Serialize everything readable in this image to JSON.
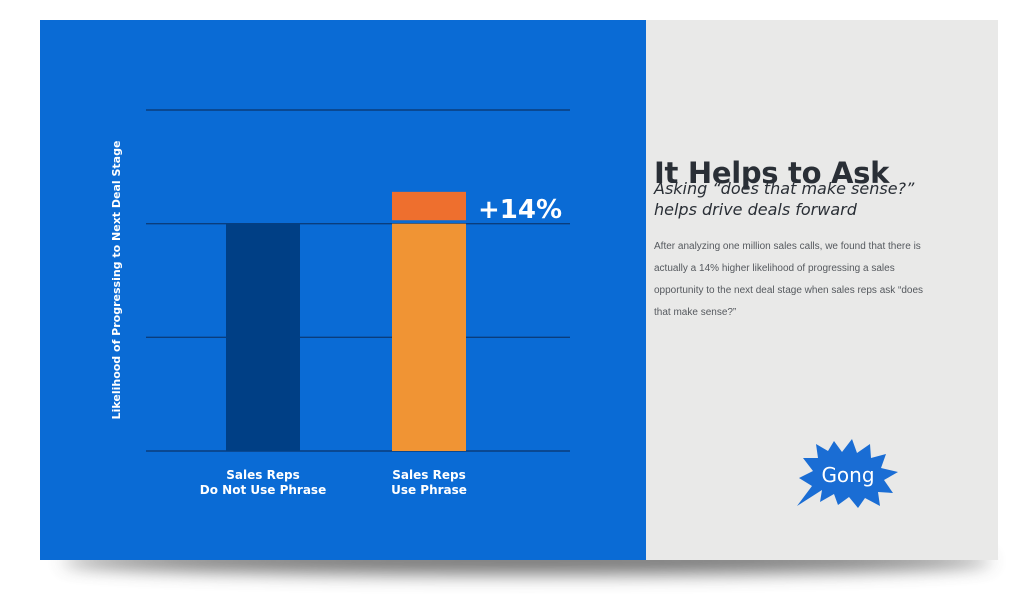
{
  "chart_data": {
    "type": "bar",
    "ylabel": "Likelihood of Progressing to Next Deal Stage",
    "categories": [
      "Sales Reps\nDo Not Use Phrase",
      "Sales Reps\nUse Phrase"
    ],
    "values": [
      100,
      114
    ],
    "ylim": [
      0,
      150
    ],
    "grid": true,
    "annotation": "+14%",
    "colors": {
      "bar_base": "#003f85",
      "bar_use": "#f09434",
      "bar_increment": "#ee6f2e",
      "gridline": "#0a3d7d",
      "panel": "#0a6bd5"
    }
  },
  "info": {
    "title": "It Helps to Ask",
    "subtitle": "Asking “does that make sense?” helps drive deals forward",
    "body": "After analyzing one million sales calls, we found that there is actually a 14% higher likelihood of progressing a sales opportunity to the next deal stage when sales reps ask “does that make sense?”"
  },
  "logo": {
    "text": "Gong",
    "icon": "starburst-icon",
    "color": "#1a6dd4"
  }
}
